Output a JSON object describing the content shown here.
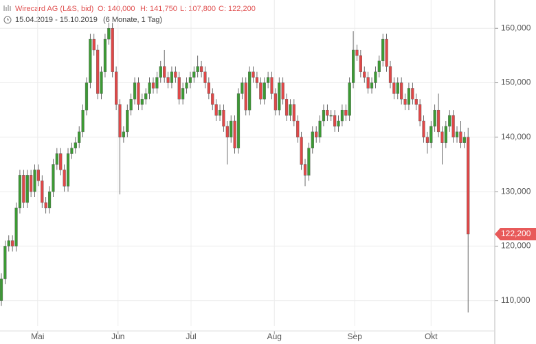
{
  "chart_data": {
    "type": "candlestick",
    "header": {
      "name": "Wirecard AG (L&S, bid)",
      "open": "O: 140,000",
      "high": "H: 141,750",
      "low": "L: 107,800",
      "close": "C: 122,200",
      "range": "15.04.2019 - 15.10.2019",
      "period": "(6 Monate, 1 Tag)"
    },
    "last_price_label": "122,200",
    "up_color": "#3c9a34",
    "down_color": "#e04848",
    "grid": true,
    "xlim": [
      -0.37,
      133.2
    ],
    "ylim": [
      105300,
      165200
    ],
    "yticks": [
      {
        "value": 110000,
        "label": "110,000"
      },
      {
        "value": 120000,
        "label": "120,000"
      },
      {
        "value": 130000,
        "label": "130,000"
      },
      {
        "value": 140000,
        "label": "140,000"
      },
      {
        "value": 150000,
        "label": "150,000"
      },
      {
        "value": 160000,
        "label": "160,000"
      }
    ],
    "xticks": [
      {
        "value": 9.8,
        "label": "Mai"
      },
      {
        "value": 31.5,
        "label": "Jun"
      },
      {
        "value": 51.2,
        "label": "Jul"
      },
      {
        "value": 73.7,
        "label": "Aug"
      },
      {
        "value": 95.4,
        "label": "Sep"
      },
      {
        "value": 116,
        "label": "Okt"
      }
    ],
    "ohlc": [
      [
        110000,
        115000,
        109000,
        114000
      ],
      [
        114000,
        121000,
        113000,
        120000
      ],
      [
        120000,
        122000,
        119000,
        121000
      ],
      [
        121000,
        122000,
        119000,
        120000
      ],
      [
        120000,
        128000,
        119000,
        127000
      ],
      [
        127000,
        134000,
        126000,
        133000
      ],
      [
        133000,
        134000,
        127000,
        128000
      ],
      [
        128000,
        134000,
        127000,
        133000
      ],
      [
        133000,
        134000,
        129000,
        130000
      ],
      [
        130000,
        135000,
        129000,
        134000
      ],
      [
        134000,
        135000,
        131000,
        132000
      ],
      [
        132000,
        133000,
        127000,
        128000
      ],
      [
        128000,
        129000,
        126000,
        127000
      ],
      [
        127000,
        131000,
        126000,
        130000
      ],
      [
        130000,
        136000,
        129000,
        135000
      ],
      [
        135000,
        138000,
        134000,
        137000
      ],
      [
        137000,
        138000,
        133000,
        134000
      ],
      [
        134000,
        135000,
        130000,
        131000
      ],
      [
        131000,
        138000,
        130000,
        137000
      ],
      [
        137000,
        139000,
        136000,
        138000
      ],
      [
        138000,
        140000,
        137000,
        139000
      ],
      [
        139000,
        142000,
        138000,
        141000
      ],
      [
        141000,
        146000,
        140000,
        145000
      ],
      [
        145000,
        151000,
        144000,
        150000
      ],
      [
        150000,
        159000,
        149000,
        158000
      ],
      [
        158000,
        159000,
        155000,
        156000
      ],
      [
        156000,
        157000,
        147000,
        148000
      ],
      [
        148000,
        153000,
        147000,
        152000
      ],
      [
        152000,
        159000,
        151000,
        158000
      ],
      [
        158000,
        161000,
        157000,
        160000
      ],
      [
        160000,
        161000,
        151000,
        152000
      ],
      [
        152000,
        153000,
        145000,
        146000
      ],
      [
        146000,
        147000,
        129500,
        140000
      ],
      [
        140000,
        142000,
        139000,
        141000
      ],
      [
        141000,
        146000,
        140000,
        145000
      ],
      [
        145000,
        148000,
        144000,
        147000
      ],
      [
        147000,
        151000,
        146000,
        150000
      ],
      [
        150000,
        151000,
        145000,
        146000
      ],
      [
        146000,
        148000,
        145000,
        147000
      ],
      [
        147000,
        149000,
        146000,
        148000
      ],
      [
        148000,
        151000,
        147000,
        150000
      ],
      [
        150000,
        151000,
        148000,
        149000
      ],
      [
        149000,
        152000,
        148000,
        151000
      ],
      [
        151000,
        154000,
        150000,
        153000
      ],
      [
        153000,
        156000,
        150000,
        151000
      ],
      [
        151000,
        152000,
        149000,
        150000
      ],
      [
        150000,
        153000,
        149000,
        152000
      ],
      [
        152000,
        153000,
        150000,
        151000
      ],
      [
        151000,
        152000,
        146000,
        147000
      ],
      [
        147000,
        150000,
        146000,
        149000
      ],
      [
        149000,
        151000,
        148000,
        150000
      ],
      [
        150000,
        152000,
        149000,
        151000
      ],
      [
        151000,
        153000,
        150000,
        152000
      ],
      [
        152000,
        155000,
        151000,
        153000
      ],
      [
        153000,
        154000,
        151000,
        152000
      ],
      [
        152000,
        153000,
        149000,
        150000
      ],
      [
        150000,
        151000,
        147000,
        148000
      ],
      [
        148000,
        149000,
        145000,
        146000
      ],
      [
        146000,
        147000,
        143000,
        144000
      ],
      [
        144000,
        146000,
        143000,
        145000
      ],
      [
        145000,
        146000,
        141000,
        142000
      ],
      [
        142000,
        143000,
        135000,
        140000
      ],
      [
        140000,
        144000,
        139000,
        143000
      ],
      [
        143000,
        144000,
        137000,
        138000
      ],
      [
        138000,
        149000,
        137000,
        148000
      ],
      [
        148000,
        151000,
        147000,
        150000
      ],
      [
        150000,
        151000,
        144000,
        145000
      ],
      [
        145000,
        153000,
        144000,
        152000
      ],
      [
        152000,
        153000,
        150000,
        151000
      ],
      [
        151000,
        152000,
        149000,
        150000
      ],
      [
        150000,
        151000,
        146000,
        147000
      ],
      [
        147000,
        151000,
        146000,
        150000
      ],
      [
        150000,
        152000,
        149000,
        151000
      ],
      [
        151000,
        152000,
        147000,
        148000
      ],
      [
        148000,
        149000,
        144000,
        145000
      ],
      [
        145000,
        151000,
        144000,
        150000
      ],
      [
        150000,
        151000,
        146000,
        147000
      ],
      [
        147000,
        148000,
        143000,
        144000
      ],
      [
        144000,
        147000,
        143000,
        146000
      ],
      [
        146000,
        147000,
        142000,
        143000
      ],
      [
        143000,
        144000,
        139000,
        140000
      ],
      [
        140000,
        141000,
        134000,
        135000
      ],
      [
        135000,
        136000,
        131000,
        133000
      ],
      [
        133000,
        139000,
        132000,
        138000
      ],
      [
        138000,
        142000,
        137000,
        141000
      ],
      [
        141000,
        142000,
        139000,
        140000
      ],
      [
        140000,
        144000,
        139000,
        143000
      ],
      [
        143000,
        146000,
        142000,
        145000
      ],
      [
        145000,
        146000,
        143000,
        144000
      ],
      [
        144000,
        145000,
        143000,
        144000
      ],
      [
        144000,
        145000,
        141000,
        142000
      ],
      [
        142000,
        144000,
        141000,
        143000
      ],
      [
        143000,
        146000,
        142000,
        145000
      ],
      [
        145000,
        146000,
        143000,
        144000
      ],
      [
        144000,
        151000,
        143000,
        150000
      ],
      [
        150000,
        159500,
        149000,
        156000
      ],
      [
        156000,
        157000,
        154000,
        155000
      ],
      [
        155000,
        156000,
        151000,
        152000
      ],
      [
        152000,
        153000,
        150000,
        151000
      ],
      [
        151000,
        152000,
        148000,
        149000
      ],
      [
        149000,
        151000,
        148000,
        150000
      ],
      [
        150000,
        153000,
        149000,
        152000
      ],
      [
        152000,
        155000,
        151000,
        154000
      ],
      [
        154000,
        159000,
        153000,
        158000
      ],
      [
        158000,
        159000,
        152000,
        153000
      ],
      [
        153000,
        154000,
        149000,
        150000
      ],
      [
        150000,
        151000,
        147000,
        148000
      ],
      [
        148000,
        151000,
        147000,
        150000
      ],
      [
        150000,
        151000,
        146000,
        147000
      ],
      [
        147000,
        148000,
        145000,
        146000
      ],
      [
        146000,
        150000,
        145000,
        149000
      ],
      [
        149000,
        150000,
        146000,
        147000
      ],
      [
        147000,
        148000,
        145000,
        146000
      ],
      [
        146000,
        147000,
        142000,
        143000
      ],
      [
        143000,
        144000,
        139000,
        140000
      ],
      [
        140000,
        141000,
        137000,
        139000
      ],
      [
        139000,
        143000,
        138000,
        142000
      ],
      [
        142000,
        146000,
        141000,
        145000
      ],
      [
        145000,
        148000,
        140000,
        141000
      ],
      [
        141000,
        142000,
        135000,
        139000
      ],
      [
        139000,
        143000,
        138000,
        142000
      ],
      [
        142000,
        145000,
        141000,
        144000
      ],
      [
        144000,
        145000,
        139000,
        140000
      ],
      [
        140000,
        142000,
        139000,
        141000
      ],
      [
        141000,
        143000,
        138000,
        139000
      ],
      [
        139000,
        141000,
        138000,
        140000
      ],
      [
        140000,
        141750,
        107800,
        122200
      ]
    ]
  }
}
